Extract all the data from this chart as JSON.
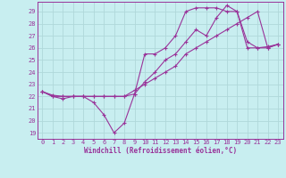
{
  "xlabel": "Windchill (Refroidissement éolien,°C)",
  "bg_color": "#c8eef0",
  "grid_color": "#b0d8da",
  "line_color": "#993399",
  "xlim": [
    -0.5,
    23.5
  ],
  "ylim": [
    18.5,
    29.8
  ],
  "xticks": [
    0,
    1,
    2,
    3,
    4,
    5,
    6,
    7,
    8,
    9,
    10,
    11,
    12,
    13,
    14,
    15,
    16,
    17,
    18,
    19,
    20,
    21,
    22,
    23
  ],
  "yticks": [
    19,
    20,
    21,
    22,
    23,
    24,
    25,
    26,
    27,
    28,
    29
  ],
  "line1_x": [
    0,
    1,
    2,
    3,
    4,
    5,
    6,
    7,
    8,
    9,
    10,
    11,
    12,
    13,
    14,
    15,
    16,
    17,
    18,
    19,
    20,
    21,
    22,
    23
  ],
  "line1_y": [
    22.4,
    22.0,
    21.8,
    22.0,
    22.0,
    21.5,
    20.5,
    19.0,
    19.8,
    22.2,
    25.5,
    25.5,
    26.0,
    27.0,
    29.0,
    29.3,
    29.3,
    29.3,
    29.0,
    29.0,
    26.0,
    26.0,
    26.0,
    26.3
  ],
  "line2_x": [
    0,
    1,
    2,
    3,
    4,
    5,
    6,
    7,
    8,
    9,
    10,
    11,
    12,
    13,
    14,
    15,
    16,
    17,
    18,
    19,
    20,
    21,
    22,
    23
  ],
  "line2_y": [
    22.4,
    22.1,
    22.0,
    22.0,
    22.0,
    22.0,
    22.0,
    22.0,
    22.0,
    22.2,
    23.2,
    24.0,
    25.0,
    25.5,
    26.5,
    27.5,
    27.0,
    28.5,
    29.5,
    29.0,
    26.5,
    26.0,
    26.1,
    26.3
  ],
  "line3_x": [
    0,
    1,
    2,
    3,
    4,
    5,
    6,
    7,
    8,
    9,
    10,
    11,
    12,
    13,
    14,
    15,
    16,
    17,
    18,
    19,
    20,
    21,
    22,
    23
  ],
  "line3_y": [
    22.4,
    22.0,
    22.0,
    22.0,
    22.0,
    22.0,
    22.0,
    22.0,
    22.0,
    22.5,
    23.0,
    23.5,
    24.0,
    24.5,
    25.5,
    26.0,
    26.5,
    27.0,
    27.5,
    28.0,
    28.5,
    29.0,
    26.0,
    26.3
  ],
  "tick_fontsize": 5.0,
  "xlabel_fontsize": 5.5
}
